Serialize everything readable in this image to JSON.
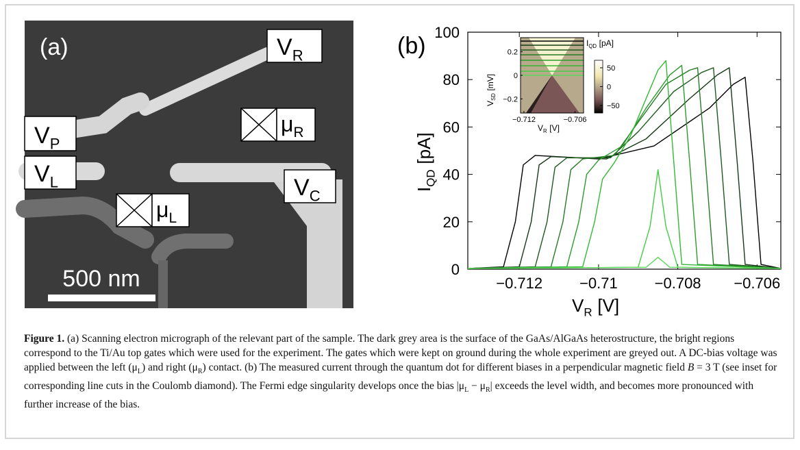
{
  "panel_a": {
    "panel_label": "(a)",
    "scale_bar": "500 nm",
    "gate_labels": [
      {
        "text": "V",
        "sub": "R"
      },
      {
        "text": "V",
        "sub": "P"
      },
      {
        "text": "V",
        "sub": "L"
      },
      {
        "text": "V",
        "sub": "C"
      }
    ],
    "contact_labels": [
      {
        "text": "μ",
        "sub": "R"
      },
      {
        "text": "μ",
        "sub": "L"
      }
    ]
  },
  "chart_data": {
    "type": "line",
    "panel_label": "(b)",
    "ylabel": {
      "text": "I",
      "sub": "QD",
      "unit": "[pA]"
    },
    "xlabel": {
      "text": "V",
      "sub": "R",
      "unit": "[V]"
    },
    "xlim": [
      -0.7133,
      -0.7054
    ],
    "ylim": [
      0,
      100
    ],
    "xticks": [
      {
        "value": -0.712,
        "label": "−0.712"
      },
      {
        "value": -0.71,
        "label": "−0.71"
      },
      {
        "value": -0.708,
        "label": "−0.708"
      },
      {
        "value": -0.706,
        "label": "−0.706"
      }
    ],
    "yticks": [
      0,
      20,
      40,
      60,
      80,
      100
    ],
    "series": [
      {
        "color": "#000000",
        "x": [
          -0.7133,
          -0.7124,
          -0.7121,
          -0.7119,
          -0.7116,
          -0.71,
          -0.7086,
          -0.7072,
          -0.7066,
          -0.7063,
          -0.7061,
          -0.7059,
          -0.7054
        ],
        "values": [
          0.3,
          1,
          20,
          44,
          48,
          46.5,
          52,
          68,
          78,
          81,
          45,
          2,
          0.3
        ]
      },
      {
        "color": "#163a16",
        "x": [
          -0.7133,
          -0.712,
          -0.7117,
          -0.7115,
          -0.7112,
          -0.7098,
          -0.7088,
          -0.7077,
          -0.707,
          -0.7067,
          -0.7065,
          -0.7063,
          -0.7054
        ],
        "values": [
          0.3,
          1,
          20,
          44,
          47.5,
          46.5,
          55,
          72,
          82,
          85,
          45,
          2,
          0.3
        ]
      },
      {
        "color": "#1d5a1d",
        "x": [
          -0.7133,
          -0.7116,
          -0.7113,
          -0.7111,
          -0.7108,
          -0.7097,
          -0.709,
          -0.7081,
          -0.7074,
          -0.7071,
          -0.7069,
          -0.7067,
          -0.7054
        ],
        "values": [
          0.3,
          1,
          20,
          43,
          47,
          47,
          58,
          75,
          83,
          85,
          45,
          2,
          0.3
        ]
      },
      {
        "color": "#257a25",
        "x": [
          -0.7133,
          -0.7112,
          -0.7109,
          -0.7107,
          -0.7104,
          -0.7096,
          -0.709,
          -0.7083,
          -0.7077,
          -0.7075,
          -0.7073,
          -0.7071,
          -0.7054
        ],
        "values": [
          0.3,
          1,
          20,
          42,
          46.5,
          48,
          62,
          78,
          84,
          85,
          45,
          2,
          0.3
        ]
      },
      {
        "color": "#2c9a2c",
        "x": [
          -0.7133,
          -0.7108,
          -0.7105,
          -0.7103,
          -0.71,
          -0.7094,
          -0.7088,
          -0.7082,
          -0.7079,
          -0.7077,
          -0.7075,
          -0.7054
        ],
        "values": [
          0.3,
          1,
          20,
          40,
          46,
          52,
          68,
          82,
          86,
          45,
          2,
          0.3
        ]
      },
      {
        "color": "#33b833",
        "x": [
          -0.7133,
          -0.7104,
          -0.7101,
          -0.7099,
          -0.7096,
          -0.7092,
          -0.7088,
          -0.7085,
          -0.7083,
          -0.7081,
          -0.7079,
          -0.7054
        ],
        "values": [
          0.3,
          1,
          20,
          38,
          45,
          56,
          72,
          84,
          88,
          45,
          2,
          0.3
        ]
      },
      {
        "color": "#44cc44",
        "x": [
          -0.7133,
          -0.709,
          -0.7087,
          -0.7085,
          -0.7083,
          -0.708,
          -0.7054
        ],
        "values": [
          0.3,
          0.8,
          18,
          42,
          18,
          0.8,
          0.3
        ]
      },
      {
        "color": "#5ad85a",
        "x": [
          -0.7133,
          -0.7088,
          -0.7085,
          -0.7082,
          -0.7054
        ],
        "values": [
          0.3,
          0.8,
          5,
          0.8,
          0.3
        ]
      }
    ],
    "inset": {
      "ylabel": {
        "text": "V",
        "sub": "SD",
        "unit": "[mV]"
      },
      "xlabel": {
        "text": "V",
        "sub": "R",
        "unit": "[V]"
      },
      "colorbar_label": {
        "text": "I",
        "sub": "QD",
        "unit": "[pA]"
      },
      "xlim": [
        -0.7124,
        -0.705
      ],
      "ylim": [
        -0.32,
        0.32
      ],
      "clim": [
        -70,
        70
      ],
      "xticks": [
        {
          "value": -0.712,
          "label": "−0.712"
        },
        {
          "value": -0.706,
          "label": "−0.706"
        }
      ],
      "yticks": [
        0.2,
        0,
        {
          "value": -0.2,
          "label": "−0.2"
        }
      ],
      "cticks": [
        50,
        0,
        {
          "value": -50,
          "label": "−50"
        }
      ]
    }
  },
  "caption": {
    "label": "Figure 1.",
    "segments": [
      {
        "text": " (a) Scanning electron micrograph of the relevant part of the sample. The dark grey area is the surface of the GaAs/AlGaAs heterostructure, the bright regions correspond to the Ti/Au top gates which were used for the experiment. The gates which were kept on ground during the whole experiment are greyed out. A DC-bias voltage was applied between the left (μ"
      },
      {
        "text": "L",
        "style": "sub"
      },
      {
        "text": ") and right (μ"
      },
      {
        "text": "R",
        "style": "sub"
      },
      {
        "text": ") contact. (b) The measured current through the quantum dot for different biases in a perpendicular magnetic field "
      },
      {
        "text": "B",
        "style": "italic"
      },
      {
        "text": " = 3 T (see inset for corresponding line cuts in the Coulomb diamond). The Fermi edge singularity develops once the bias |μ"
      },
      {
        "text": "L",
        "style": "sub"
      },
      {
        "text": " − μ"
      },
      {
        "text": "R",
        "style": "sub"
      },
      {
        "text": "| exceeds the level width, and becomes more pronounced with further increase of the bias."
      }
    ]
  }
}
